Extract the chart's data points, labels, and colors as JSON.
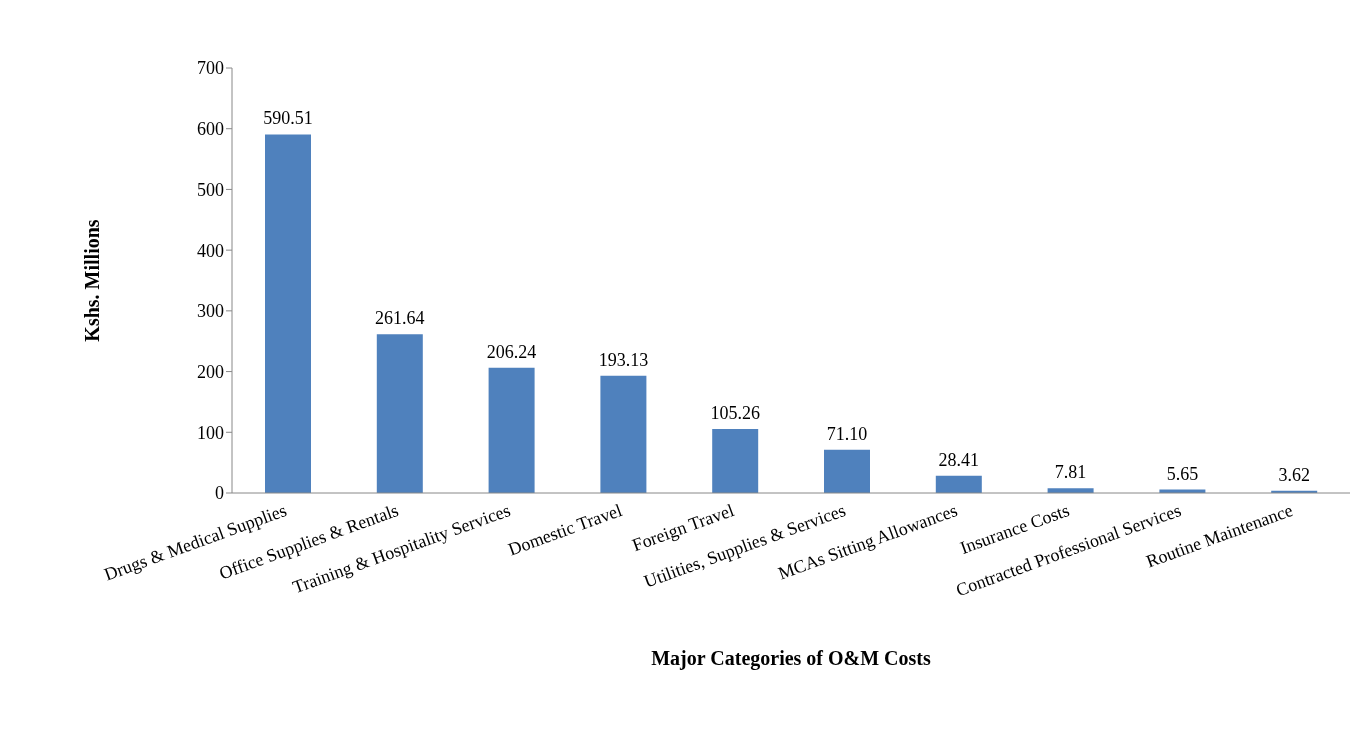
{
  "chart_data": {
    "type": "bar",
    "xlabel": "Major Categories of O&M Costs",
    "ylabel": "Kshs. Millions",
    "categories": [
      "Drugs & Medical Supplies",
      "Office Supplies & Rentals",
      "Training & Hospitality Services",
      "Domestic Travel",
      "Foreign Travel",
      "Utilities, Supplies & Services",
      "MCAs Sitting Allowances",
      "Insurance Costs",
      "Contracted Professional Services",
      "Routine Maintenance"
    ],
    "values": [
      590.51,
      261.64,
      206.24,
      193.13,
      105.26,
      71.1,
      28.41,
      7.81,
      5.65,
      3.62
    ],
    "value_labels": [
      "590.51",
      "261.64",
      "206.24",
      "193.13",
      "105.26",
      "71.10",
      "28.41",
      "7.81",
      "5.65",
      "3.62"
    ],
    "color": "#4f81bd",
    "ylim": [
      0,
      700
    ],
    "yticks": [
      0,
      100,
      200,
      300,
      400,
      500,
      600,
      700
    ],
    "grid": false,
    "legend": false
  }
}
